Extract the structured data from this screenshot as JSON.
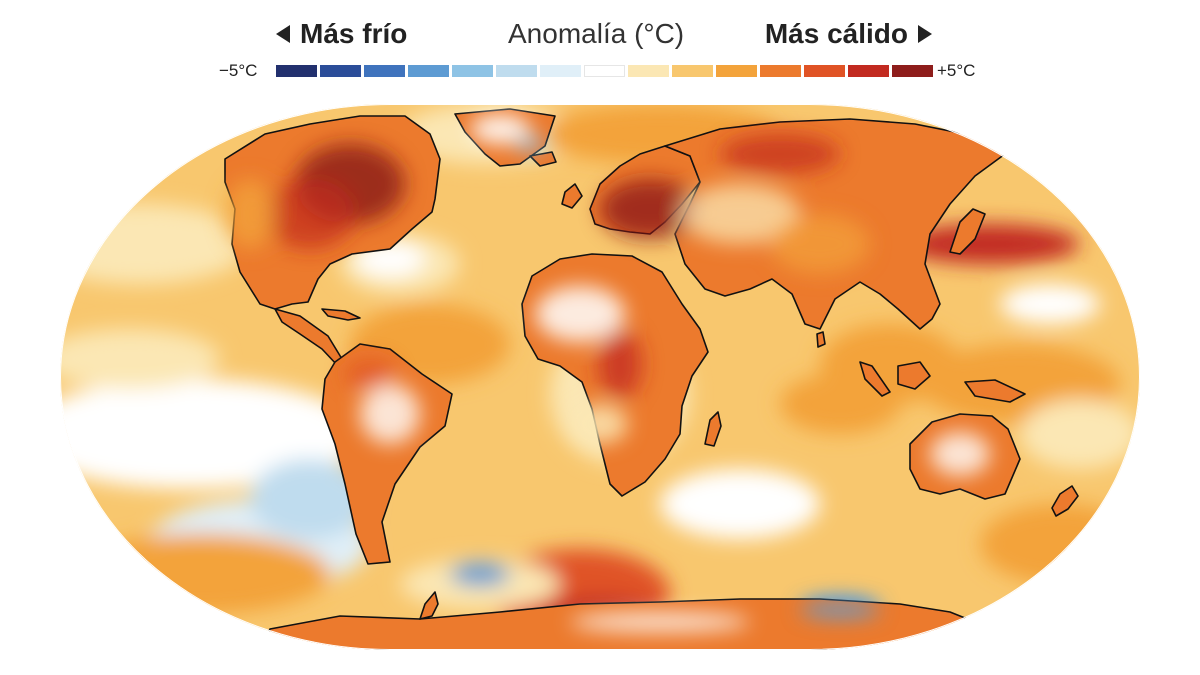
{
  "legend": {
    "colder_label": "Más frío",
    "center_label": "Anomalía (°C)",
    "warmer_label": "Más cálido",
    "min_label": "−5°C",
    "max_label": "+5°C",
    "colors": [
      "#22306e",
      "#2b4d99",
      "#3f73bd",
      "#5d9bd3",
      "#8ec3e5",
      "#bfdcee",
      "#e0eff8",
      "#ffffff",
      "#fbe7b4",
      "#f8c76e",
      "#f3a33b",
      "#ec7a2d",
      "#e05325",
      "#c22a20",
      "#8e1d1b"
    ]
  },
  "map": {
    "projection": "equal-earth",
    "ocean_base": "#f8c76e",
    "land_base": "#ec7a2d",
    "outline_color": "#111111"
  }
}
